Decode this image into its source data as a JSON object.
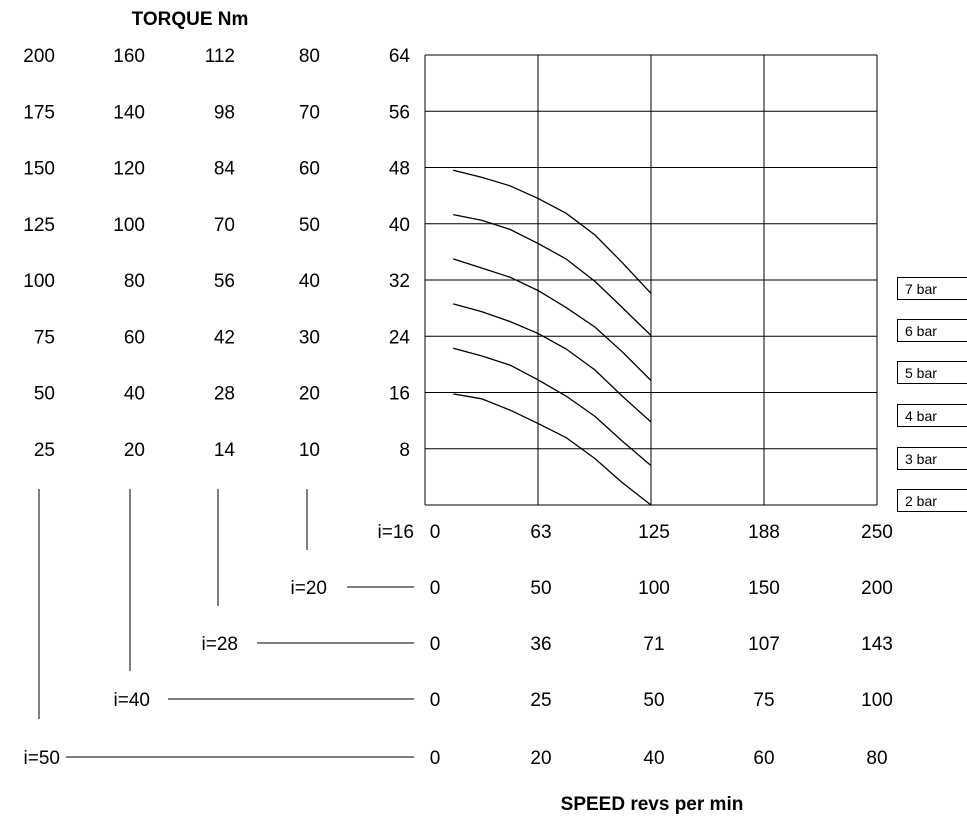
{
  "chart_data": {
    "type": "line",
    "title": "",
    "ylabel": "TORQUE Nm",
    "xlabel": "SPEED revs per min",
    "ylim": [
      0,
      64
    ],
    "xlim": [
      0,
      250
    ],
    "grid": true,
    "legend_placement": "right",
    "torque_scales": [
      {
        "ticks": [
          "200",
          "175",
          "150",
          "125",
          "100",
          "75",
          "50",
          "25"
        ]
      },
      {
        "ticks": [
          "160",
          "140",
          "120",
          "100",
          "80",
          "60",
          "40",
          "20"
        ]
      },
      {
        "ticks": [
          "112",
          "98",
          "84",
          "70",
          "56",
          "42",
          "28",
          "14"
        ]
      },
      {
        "ticks": [
          "80",
          "70",
          "60",
          "50",
          "40",
          "30",
          "20",
          "10"
        ]
      },
      {
        "ticks": [
          "64",
          "56",
          "48",
          "40",
          "32",
          "24",
          "16",
          "8"
        ]
      }
    ],
    "speed_scales": [
      {
        "ratio": "i=16",
        "ticks": [
          "0",
          "63",
          "125",
          "188",
          "250"
        ]
      },
      {
        "ratio": "i=20",
        "ticks": [
          "0",
          "50",
          "100",
          "150",
          "200"
        ]
      },
      {
        "ratio": "i=28",
        "ticks": [
          "0",
          "36",
          "71",
          "107",
          "143"
        ]
      },
      {
        "ratio": "i=40",
        "ticks": [
          "0",
          "25",
          "50",
          "75",
          "100"
        ]
      },
      {
        "ratio": "i=50",
        "ticks": [
          "0",
          "20",
          "40",
          "60",
          "80"
        ]
      }
    ],
    "series": [
      {
        "name": "7 bar",
        "points": [
          [
            15.6,
            47.6
          ],
          [
            31.3,
            46.6
          ],
          [
            47,
            45.4
          ],
          [
            62.5,
            43.6
          ],
          [
            78,
            41.5
          ],
          [
            94,
            38.4
          ],
          [
            109,
            34.5
          ],
          [
            125,
            30.1
          ]
        ]
      },
      {
        "name": "6 bar",
        "points": [
          [
            15.6,
            41.3
          ],
          [
            31.3,
            40.5
          ],
          [
            47,
            39.2
          ],
          [
            62.5,
            37.2
          ],
          [
            78,
            35
          ],
          [
            94,
            31.8
          ],
          [
            109,
            28.1
          ],
          [
            125,
            24.1
          ]
        ]
      },
      {
        "name": "5 bar",
        "points": [
          [
            15.6,
            35
          ],
          [
            31.3,
            33.7
          ],
          [
            47,
            32.4
          ],
          [
            62.5,
            30.5
          ],
          [
            78,
            28.1
          ],
          [
            94,
            25.3
          ],
          [
            109,
            21.8
          ],
          [
            125,
            17.7
          ]
        ]
      },
      {
        "name": "4 bar",
        "points": [
          [
            15.6,
            28.6
          ],
          [
            31.3,
            27.5
          ],
          [
            47,
            26.1
          ],
          [
            62.5,
            24.4
          ],
          [
            78,
            22.2
          ],
          [
            94,
            19.2
          ],
          [
            109,
            15.5
          ],
          [
            125,
            11.8
          ]
        ]
      },
      {
        "name": "3 bar",
        "points": [
          [
            15.6,
            22.3
          ],
          [
            31.3,
            21.2
          ],
          [
            47,
            19.9
          ],
          [
            62.5,
            17.8
          ],
          [
            78,
            15.5
          ],
          [
            94,
            12.6
          ],
          [
            109,
            9.1
          ],
          [
            125,
            5.6
          ]
        ]
      },
      {
        "name": "2 bar",
        "points": [
          [
            15.6,
            15.8
          ],
          [
            31.3,
            15.1
          ],
          [
            47,
            13.5
          ],
          [
            62.5,
            11.6
          ],
          [
            78,
            9.6
          ],
          [
            94,
            6.6
          ],
          [
            109,
            3.2
          ],
          [
            125,
            0
          ]
        ]
      }
    ]
  }
}
